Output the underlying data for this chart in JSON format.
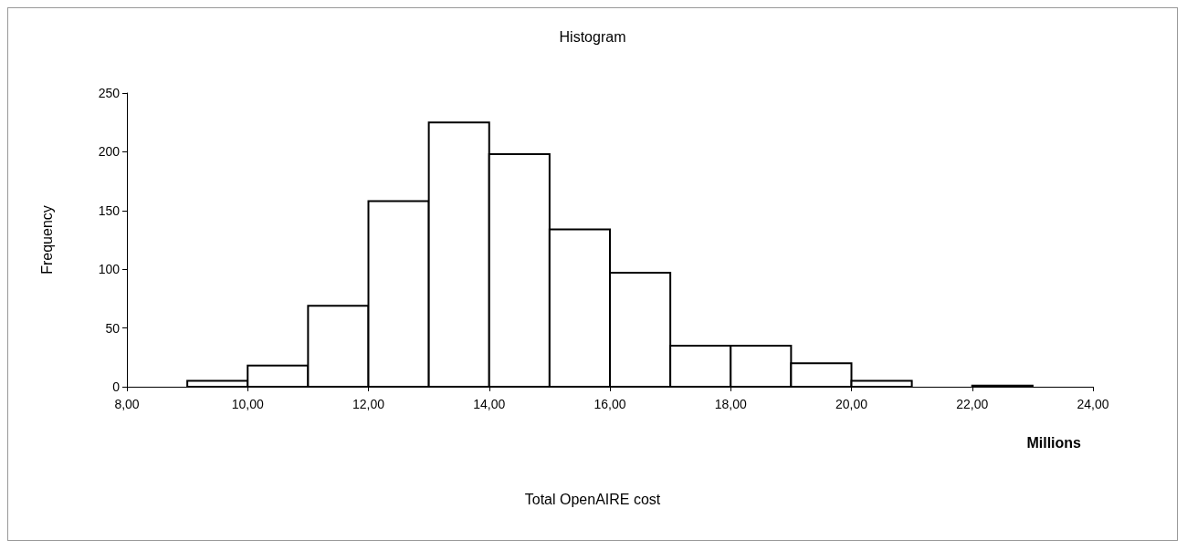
{
  "chart_data": {
    "type": "histogram",
    "title": "Histogram",
    "ylabel": "Frequency",
    "annotations": [
      "Millions",
      "Total OpenAIRE cost"
    ],
    "bins": [
      9,
      10,
      11,
      12,
      13,
      14,
      15,
      16,
      17,
      18,
      19,
      20,
      21,
      22,
      23
    ],
    "values": [
      5,
      18,
      69,
      158,
      225,
      198,
      134,
      97,
      35,
      35,
      20,
      5,
      0,
      1
    ],
    "color": "#ffffff",
    "xlim": [
      8,
      24
    ],
    "xticks": [
      {
        "value": 8,
        "label": "8,00"
      },
      {
        "value": 10,
        "label": "10,00"
      },
      {
        "value": 12,
        "label": "12,00"
      },
      {
        "value": 14,
        "label": "14,00"
      },
      {
        "value": 16,
        "label": "16,00"
      },
      {
        "value": 18,
        "label": "18,00"
      },
      {
        "value": 20,
        "label": "20,00"
      },
      {
        "value": 22,
        "label": "22,00"
      },
      {
        "value": 24,
        "label": "24,00"
      }
    ],
    "ylim": [
      0,
      250
    ],
    "yticks": [
      0,
      50,
      100,
      150,
      200,
      250
    ],
    "grid": false
  }
}
